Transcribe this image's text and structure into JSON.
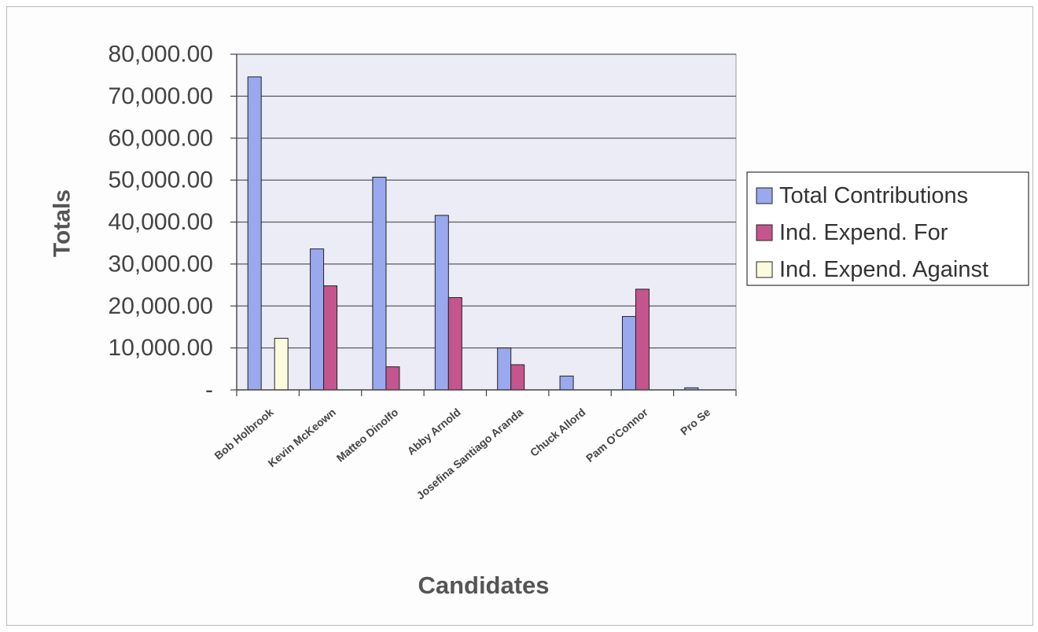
{
  "chart_data": {
    "type": "bar",
    "title": "",
    "xlabel": "Candidates",
    "ylabel": "Totals",
    "ylim": [
      0,
      80000
    ],
    "yticks": [
      {
        "value": 0,
        "label": "-"
      },
      {
        "value": 10000,
        "label": "10,000.00"
      },
      {
        "value": 20000,
        "label": "20,000.00"
      },
      {
        "value": 30000,
        "label": "30,000.00"
      },
      {
        "value": 40000,
        "label": "40,000.00"
      },
      {
        "value": 50000,
        "label": "50,000.00"
      },
      {
        "value": 60000,
        "label": "60,000.00"
      },
      {
        "value": 70000,
        "label": "70,000.00"
      },
      {
        "value": 80000,
        "label": "80,000.00"
      }
    ],
    "grid": true,
    "legend_position": "right",
    "categories": [
      "Bob Holbrook",
      "Kevin McKeown",
      "Matteo Dinolfo",
      "Abby Arnold",
      "Josefina Santiago Aranda",
      "Chuck Allord",
      "Pam O'Connor",
      "Pro Se"
    ],
    "series": [
      {
        "name": "Total Contributions",
        "color": "#9aa8ee",
        "values": [
          74600,
          33600,
          50700,
          41600,
          10000,
          3300,
          17500,
          500
        ]
      },
      {
        "name": "Ind. Expend. For",
        "color": "#c4558f",
        "values": [
          0,
          24800,
          5500,
          22000,
          6000,
          0,
          24000,
          0
        ]
      },
      {
        "name": "Ind. Expend. Against",
        "color": "#fbfbde",
        "values": [
          12300,
          0,
          0,
          0,
          0,
          0,
          0,
          0
        ]
      }
    ]
  }
}
